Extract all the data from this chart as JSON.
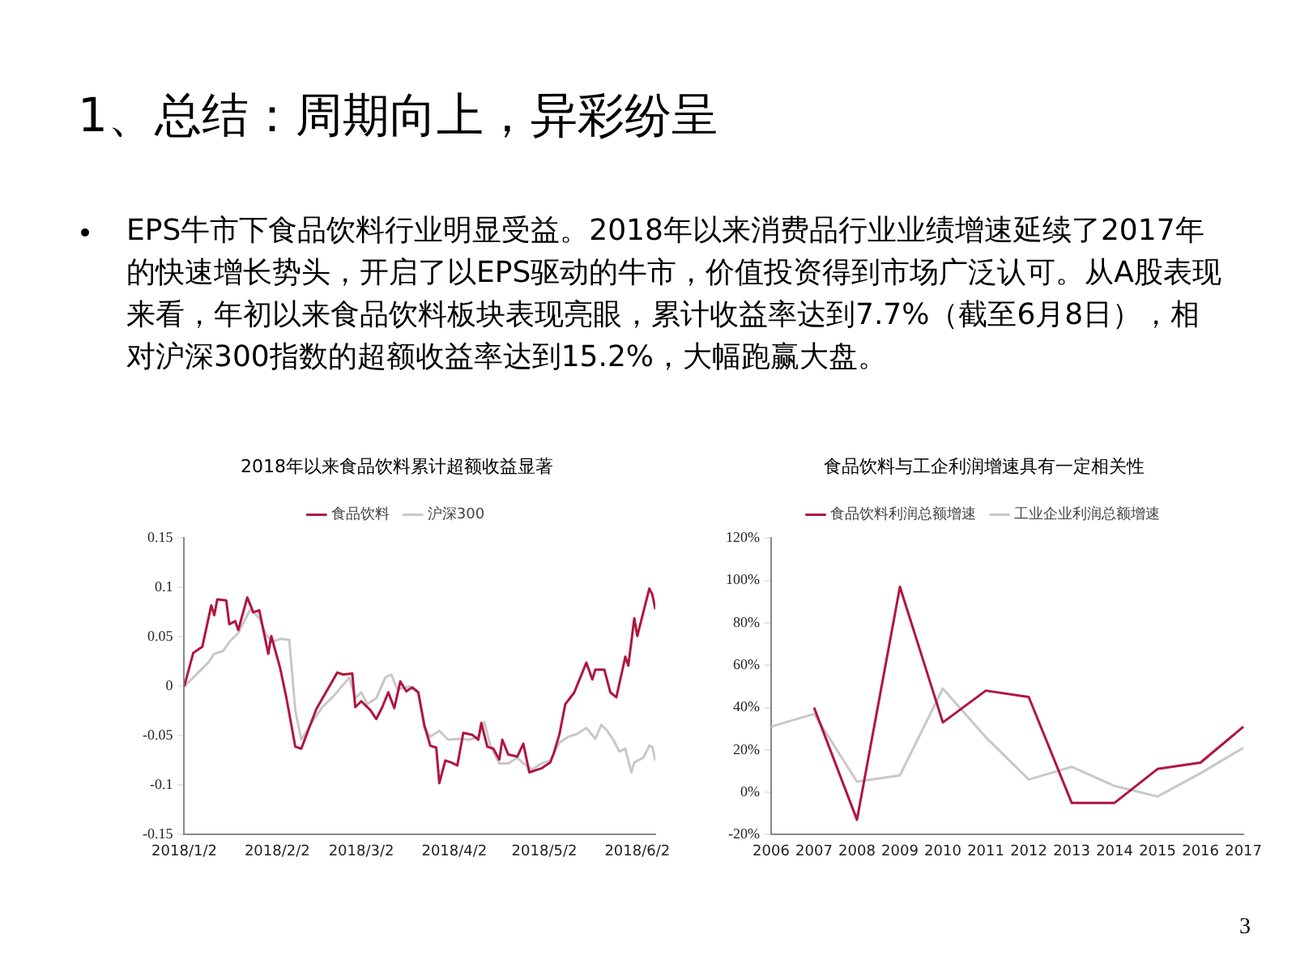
{
  "chart_data": [
    {
      "type": "other",
      "title": "1、总结：周期向上，异彩纷呈",
      "annotations": [
        "EPS牛市下食品饮料行业明显受益。2018年以来消费品行业业绩增速延续了2017年的快速增长势头，开启了以EPS驱动的牛市，价值投资得到市场广泛认可。从A股表现来看，年初以来食品饮料板块表现亮眼，累计收益率达到7.7%（截至6月8日），相对沪深300指数的超额收益率达到15.2%，大幅跑赢大盘。",
        "3"
      ]
    },
    {
      "type": "line",
      "title": "2018年以来食品饮料累计超额收益显著",
      "legend": "top",
      "grid": false,
      "marker": "none",
      "xlim": [
        "2018-01-02",
        "2018-06-08"
      ],
      "xticks": [
        {
          "value": "2018-01-02",
          "label": "2018/1/2"
        },
        {
          "value": "2018-02-02",
          "label": "2018/2/2"
        },
        {
          "value": "2018-03-02",
          "label": "2018/3/2"
        },
        {
          "value": "2018-04-02",
          "label": "2018/4/2"
        },
        {
          "value": "2018-05-02",
          "label": "2018/5/2"
        },
        {
          "value": "2018-06-02",
          "label": "2018/6/2"
        }
      ],
      "ylim": [
        -0.15,
        0.15
      ],
      "yticks": [
        -0.15,
        -0.1,
        -0.05,
        0,
        0.05,
        0.1,
        0.15
      ],
      "series": [
        {
          "name": "食品饮料",
          "color": "#b0163f",
          "x": [
            "2018-01-02",
            "2018-01-05",
            "2018-01-08",
            "2018-01-11",
            "2018-01-12",
            "2018-01-13",
            "2018-01-16",
            "2018-01-17",
            "2018-01-19",
            "2018-01-20",
            "2018-01-23",
            "2018-01-25",
            "2018-01-27",
            "2018-01-30",
            "2018-01-31",
            "2018-02-03",
            "2018-02-05",
            "2018-02-08",
            "2018-02-10",
            "2018-02-15",
            "2018-02-22",
            "2018-02-24",
            "2018-02-27",
            "2018-02-28",
            "2018-03-02",
            "2018-03-05",
            "2018-03-07",
            "2018-03-09",
            "2018-03-11",
            "2018-03-13",
            "2018-03-15",
            "2018-03-17",
            "2018-03-19",
            "2018-03-21",
            "2018-03-23",
            "2018-03-25",
            "2018-03-27",
            "2018-03-28",
            "2018-03-30",
            "2018-04-01",
            "2018-04-03",
            "2018-04-05",
            "2018-04-08",
            "2018-04-10",
            "2018-04-11",
            "2018-04-13",
            "2018-04-15",
            "2018-04-17",
            "2018-04-18",
            "2018-04-20",
            "2018-04-23",
            "2018-04-25",
            "2018-04-27",
            "2018-05-01",
            "2018-05-04",
            "2018-05-05",
            "2018-05-07",
            "2018-05-09",
            "2018-05-12",
            "2018-05-16",
            "2018-05-18",
            "2018-05-19",
            "2018-05-22",
            "2018-05-24",
            "2018-05-26",
            "2018-05-29",
            "2018-05-30",
            "2018-06-01",
            "2018-06-02",
            "2018-06-06",
            "2018-06-07",
            "2018-06-08"
          ],
          "values": [
            0,
            0.034,
            0.04,
            0.082,
            0.072,
            0.088,
            0.087,
            0.063,
            0.066,
            0.057,
            0.09,
            0.075,
            0.077,
            0.033,
            0.051,
            0.018,
            -0.011,
            -0.061,
            -0.063,
            -0.023,
            0.014,
            0.012,
            0.013,
            -0.021,
            -0.015,
            -0.024,
            -0.033,
            -0.021,
            -0.006,
            -0.022,
            0.005,
            -0.005,
            -0.001,
            -0.006,
            -0.039,
            -0.06,
            -0.062,
            -0.098,
            -0.075,
            -0.077,
            -0.08,
            -0.047,
            -0.049,
            -0.054,
            -0.037,
            -0.061,
            -0.063,
            -0.074,
            -0.054,
            -0.069,
            -0.071,
            -0.058,
            -0.087,
            -0.083,
            -0.077,
            -0.069,
            -0.049,
            -0.018,
            -0.006,
            0.024,
            0.007,
            0.017,
            0.017,
            -0.006,
            -0.011,
            0.03,
            0.021,
            0.069,
            0.051,
            0.099,
            0.093,
            0.078
          ]
        },
        {
          "name": "沪深300",
          "color": "#c8c8c8",
          "x": [
            "2018-01-02",
            "2018-01-05",
            "2018-01-10",
            "2018-01-12",
            "2018-01-15",
            "2018-01-17",
            "2018-01-20",
            "2018-01-24",
            "2018-01-27",
            "2018-01-29",
            "2018-01-31",
            "2018-02-03",
            "2018-02-06",
            "2018-02-08",
            "2018-02-10",
            "2018-02-13",
            "2018-02-17",
            "2018-02-21",
            "2018-02-26",
            "2018-02-28",
            "2018-03-02",
            "2018-03-04",
            "2018-03-07",
            "2018-03-10",
            "2018-03-12",
            "2018-03-14",
            "2018-03-18",
            "2018-03-21",
            "2018-03-23",
            "2018-03-25",
            "2018-03-28",
            "2018-03-31",
            "2018-04-04",
            "2018-04-07",
            "2018-04-10",
            "2018-04-12",
            "2018-04-14",
            "2018-04-17",
            "2018-04-20",
            "2018-04-23",
            "2018-04-25",
            "2018-04-28",
            "2018-05-01",
            "2018-05-04",
            "2018-05-07",
            "2018-05-10",
            "2018-05-13",
            "2018-05-16",
            "2018-05-19",
            "2018-05-21",
            "2018-05-23",
            "2018-05-25",
            "2018-05-27",
            "2018-05-29",
            "2018-05-31",
            "2018-06-01",
            "2018-06-04",
            "2018-06-06",
            "2018-06-07",
            "2018-06-08"
          ],
          "values": [
            0,
            0.009,
            0.024,
            0.033,
            0.036,
            0.045,
            0.054,
            0.078,
            0.069,
            0.054,
            0.045,
            0.048,
            0.047,
            -0.024,
            -0.054,
            -0.039,
            -0.021,
            -0.009,
            0.009,
            -0.012,
            -0.006,
            -0.018,
            -0.012,
            0.009,
            0.012,
            -0.003,
            0,
            -0.006,
            -0.042,
            -0.051,
            -0.045,
            -0.054,
            -0.053,
            -0.054,
            -0.051,
            -0.036,
            -0.06,
            -0.078,
            -0.078,
            -0.072,
            -0.078,
            -0.084,
            -0.078,
            -0.075,
            -0.057,
            -0.051,
            -0.048,
            -0.042,
            -0.053,
            -0.039,
            -0.045,
            -0.054,
            -0.066,
            -0.063,
            -0.087,
            -0.077,
            -0.072,
            -0.06,
            -0.061,
            -0.075
          ]
        }
      ]
    },
    {
      "type": "line",
      "title": "食品饮料与工企利润增速具有一定相关性",
      "legend": "top",
      "grid": false,
      "marker": "none",
      "categories": [
        "2006",
        "2007",
        "2008",
        "2009",
        "2010",
        "2011",
        "2012",
        "2013",
        "2014",
        "2015",
        "2016",
        "2017"
      ],
      "ylim": [
        -20,
        120
      ],
      "yticks": [
        {
          "value": -20,
          "label": "-20%"
        },
        {
          "value": 0,
          "label": "0%"
        },
        {
          "value": 20,
          "label": "20%"
        },
        {
          "value": 40,
          "label": "40%"
        },
        {
          "value": 60,
          "label": "60%"
        },
        {
          "value": 80,
          "label": "80%"
        },
        {
          "value": 100,
          "label": "100%"
        },
        {
          "value": 120,
          "label": "120%"
        }
      ],
      "series": [
        {
          "name": "食品饮料利润总额增速",
          "color": "#b0163f",
          "values": [
            null,
            40,
            -13,
            97,
            33,
            48,
            45,
            -5,
            -5,
            11,
            14,
            31
          ]
        },
        {
          "name": "工业企业利润总额增速",
          "color": "#c8c8c8",
          "values": [
            31,
            37,
            5,
            8,
            49,
            26,
            6,
            12,
            3,
            -2,
            9,
            21
          ]
        }
      ]
    }
  ]
}
